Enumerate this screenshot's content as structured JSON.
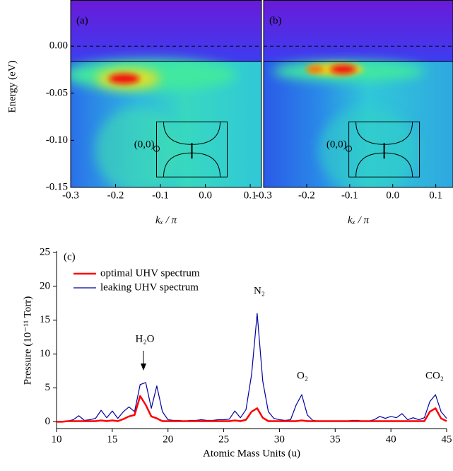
{
  "chart_data": [
    {
      "type": "image",
      "label": "(a)",
      "ylabel": "Energy (eV)",
      "xlabel": "kₓ / π",
      "inset_label": "(0,0)",
      "xlim": [
        -0.3,
        0.125
      ],
      "ylim": [
        -0.15,
        0.049
      ],
      "xticks": [
        -0.3,
        -0.2,
        -0.1,
        {
          "value": 0,
          "label": "0.0"
        },
        0.1
      ],
      "yticks": [
        {
          "value": 0,
          "label": "0.00"
        },
        {
          "value": -0.05,
          "label": "-0.05"
        },
        {
          "value": -0.1,
          "label": "-0.10"
        },
        {
          "value": -0.15,
          "label": "-0.15"
        }
      ],
      "hlines": [
        {
          "value": 0,
          "style": "dashed"
        },
        {
          "value": -0.016,
          "style": "solid"
        }
      ]
    },
    {
      "type": "image",
      "label": "(b)",
      "xlabel": "kₓ / π",
      "inset_label": "(0,0)",
      "xlim": [
        -0.3,
        0.14
      ],
      "ylim": [
        -0.15,
        0.049
      ],
      "xticks": [
        -0.3,
        -0.2,
        -0.1,
        {
          "value": 0,
          "label": "0.0"
        },
        0.1
      ],
      "hlines": [
        {
          "value": 0,
          "style": "dashed"
        },
        {
          "value": -0.016,
          "style": "solid"
        }
      ]
    },
    {
      "type": "line",
      "label": "(c)",
      "xlabel": "Atomic Mass Units (u)",
      "ylabel": "Pressure (10⁻¹¹ Torr)",
      "annotations": [
        "H₂O",
        "N₂",
        "O₂",
        "CO₂"
      ],
      "legend": "upper left",
      "xlim": [
        10,
        45
      ],
      "ylim": [
        -1,
        25
      ],
      "xticks": [
        10,
        15,
        20,
        25,
        30,
        35,
        40,
        45
      ],
      "yticks": [
        0,
        5,
        10,
        15,
        20,
        25
      ],
      "x": [
        10,
        10.5,
        11,
        11.5,
        12,
        12.5,
        13,
        13.5,
        14,
        14.5,
        15,
        15.5,
        16,
        16.5,
        17,
        17.5,
        18,
        18.5,
        19,
        19.5,
        20,
        20.5,
        21,
        21.5,
        22,
        22.5,
        23,
        23.5,
        24,
        24.5,
        25,
        25.5,
        26,
        26.5,
        27,
        27.5,
        28,
        28.5,
        29,
        29.5,
        30,
        30.5,
        31,
        31.5,
        32,
        32.5,
        33,
        33.5,
        34,
        34.5,
        35,
        35.5,
        36,
        36.5,
        37,
        37.5,
        38,
        38.5,
        39,
        39.5,
        40,
        40.5,
        41,
        41.5,
        42,
        42.5,
        43,
        43.5,
        44,
        44.5,
        45
      ],
      "series": [
        {
          "name": "optimal UHV spectrum",
          "color": "#ff0000",
          "width": 2.5,
          "values": [
            0,
            0,
            0.1,
            0.1,
            0.1,
            0.1,
            0.1,
            0.1,
            0.2,
            0.1,
            0.2,
            0.1,
            0.4,
            0.8,
            1,
            3.8,
            2.5,
            0.8,
            0.5,
            0.1,
            0.1,
            0.1,
            0.1,
            0.1,
            0.1,
            0.1,
            0.1,
            0.1,
            0.1,
            0.1,
            0.1,
            0.1,
            0.2,
            0.1,
            0.3,
            1.5,
            2,
            0.6,
            0.1,
            0.1,
            0.1,
            0.1,
            0.1,
            0.1,
            0.2,
            0.1,
            0.1,
            0.1,
            0.1,
            0.1,
            0.1,
            0.1,
            0.1,
            0.1,
            0.1,
            0.1,
            0.1,
            0.1,
            0.1,
            0.1,
            0.1,
            0.1,
            0.1,
            0.1,
            0.1,
            0.1,
            0.1,
            1.5,
            2,
            0.5,
            0.1
          ]
        },
        {
          "name": "leaking UHV spectrum",
          "color": "#0000a0",
          "width": 1.2,
          "values": [
            0,
            0,
            0.1,
            0.3,
            0.9,
            0.2,
            0.3,
            0.5,
            1.7,
            0.6,
            1.6,
            0.5,
            1.5,
            2.2,
            1.5,
            5.5,
            5.8,
            2,
            5.3,
            1.5,
            0.3,
            0.2,
            0.2,
            0.1,
            0.2,
            0.2,
            0.3,
            0.2,
            0.2,
            0.3,
            0.3,
            0.4,
            1.6,
            0.6,
            1.8,
            7,
            16,
            6,
            1.5,
            0.5,
            0.3,
            0.2,
            0.3,
            2.5,
            4,
            1,
            0.2,
            0.1,
            0.1,
            0.1,
            0.1,
            0.1,
            0.1,
            0.2,
            0.2,
            0.1,
            0.1,
            0.3,
            0.8,
            0.5,
            0.8,
            0.6,
            1.2,
            0.3,
            0.6,
            0.3,
            0.6,
            3,
            4,
            1.5,
            0.5
          ]
        }
      ]
    }
  ]
}
